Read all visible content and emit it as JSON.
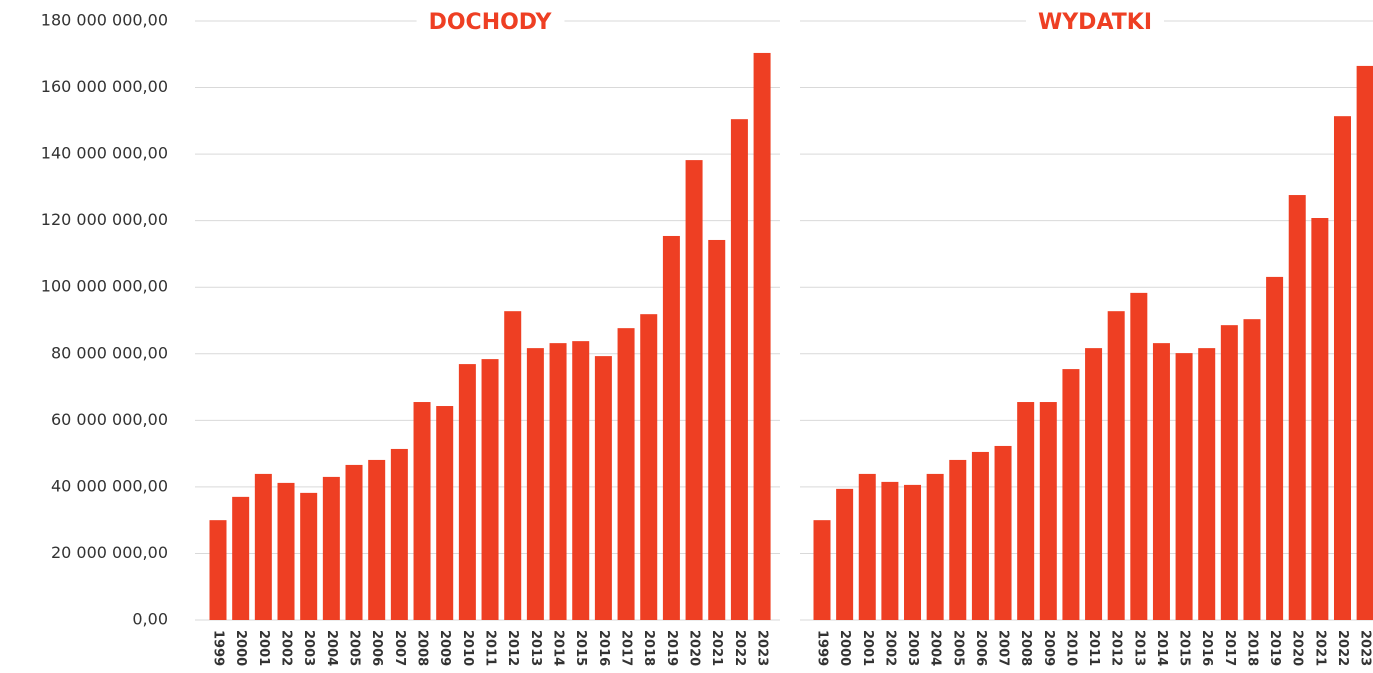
{
  "chart_data": [
    {
      "type": "bar",
      "title": "DOCHODY",
      "color": "#ee3f23",
      "categories": [
        "1999",
        "2000",
        "2001",
        "2002",
        "2003",
        "2004",
        "2005",
        "2006",
        "2007",
        "2008",
        "2009",
        "2010",
        "2011",
        "2012",
        "2013",
        "2014",
        "2015",
        "2016",
        "2017",
        "2018",
        "2019",
        "2020",
        "2021",
        "2022",
        "2023"
      ],
      "values": [
        30000000,
        37000000,
        43900000,
        41200000,
        38200000,
        43000000,
        46600000,
        48100000,
        51400000,
        65500000,
        64300000,
        76900000,
        78400000,
        92800000,
        81700000,
        83200000,
        83800000,
        79300000,
        87700000,
        91900000,
        115400000,
        138200000,
        114200000,
        150500000,
        170400000
      ],
      "ylim": [
        0,
        180000000
      ],
      "yticks": [
        {
          "value": 0,
          "label": "0,00"
        },
        {
          "value": 20000000,
          "label": "20 000 000,00"
        },
        {
          "value": 40000000,
          "label": "40 000 000,00"
        },
        {
          "value": 60000000,
          "label": "60 000 000,00"
        },
        {
          "value": 80000000,
          "label": "80 000 000,00"
        },
        {
          "value": 100000000,
          "label": "100 000 000,00"
        },
        {
          "value": 120000000,
          "label": "120 000 000,00"
        },
        {
          "value": 140000000,
          "label": "140 000 000,00"
        },
        {
          "value": 160000000,
          "label": "160 000 000,00"
        },
        {
          "value": 180000000,
          "label": "180 000 000,00"
        }
      ],
      "grid": true
    },
    {
      "type": "bar",
      "title": "WYDATKI",
      "color": "#ee3f23",
      "categories": [
        "1999",
        "2000",
        "2001",
        "2002",
        "2003",
        "2004",
        "2005",
        "2006",
        "2007",
        "2008",
        "2009",
        "2010",
        "2011",
        "2012",
        "2013",
        "2014",
        "2015",
        "2016",
        "2017",
        "2018",
        "2019",
        "2020",
        "2021",
        "2022",
        "2023"
      ],
      "values": [
        30000000,
        39400000,
        43900000,
        41500000,
        40600000,
        43900000,
        48100000,
        50500000,
        52300000,
        65500000,
        65500000,
        75400000,
        81700000,
        92800000,
        98300000,
        83200000,
        80200000,
        81700000,
        88600000,
        90400000,
        103100000,
        127700000,
        120800000,
        151400000,
        166500000
      ],
      "ylim": [
        0,
        180000000
      ],
      "yticks": [
        0,
        20000000,
        40000000,
        60000000,
        80000000,
        100000000,
        120000000,
        140000000,
        160000000,
        180000000
      ],
      "grid": true
    }
  ]
}
